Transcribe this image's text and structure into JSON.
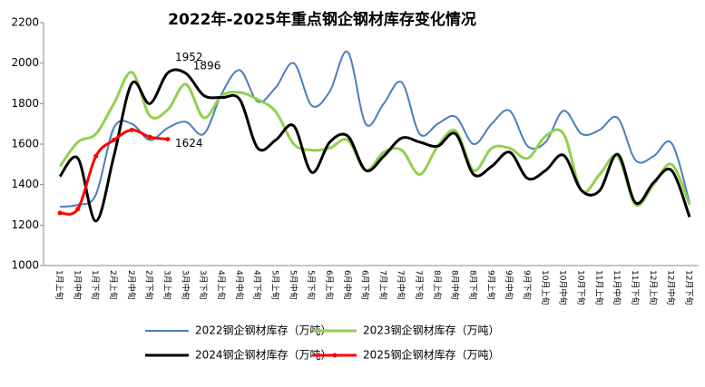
{
  "chart_data": {
    "type": "line",
    "title": "2022年-2025年重点钢企钢材库存变化情况",
    "categories": [
      "1月上旬",
      "1月中旬",
      "1月下旬",
      "2月上旬",
      "2月中旬",
      "2月下旬",
      "3月上旬",
      "3月中旬",
      "3月下旬",
      "4月上旬",
      "4月中旬",
      "4月下旬",
      "5月上旬",
      "5月中旬",
      "5月下旬",
      "6月上旬",
      "6月中旬",
      "6月下旬",
      "7月上旬",
      "7月中旬",
      "7月下旬",
      "8月上旬",
      "8月中旬",
      "8月下旬",
      "9月上旬",
      "9月中旬",
      "9月下旬",
      "10月上旬",
      "10月中旬",
      "10月下旬",
      "11月上旬",
      "11月中旬",
      "11月下旬",
      "12月上旬",
      "12月中旬",
      "12月下旬"
    ],
    "ylim": [
      1000,
      2200
    ],
    "yticks": [
      1000,
      1200,
      1400,
      1600,
      1800,
      2000,
      2200
    ],
    "series": [
      {
        "name": "2022钢企钢材库存（万吨）",
        "color": "#4a7ebb",
        "width": 2,
        "values": [
          1290,
          1300,
          1350,
          1680,
          1700,
          1620,
          1680,
          1710,
          1650,
          1850,
          1965,
          1810,
          1880,
          2000,
          1790,
          1860,
          2055,
          1700,
          1800,
          1905,
          1650,
          1700,
          1735,
          1600,
          1700,
          1765,
          1590,
          1610,
          1765,
          1650,
          1670,
          1730,
          1520,
          1540,
          1605,
          1310
        ]
      },
      {
        "name": "2023钢企钢材库存（万吨）",
        "color": "#92d050",
        "width": 3,
        "values": [
          1490,
          1610,
          1650,
          1800,
          1955,
          1740,
          1770,
          1896,
          1730,
          1840,
          1855,
          1820,
          1760,
          1600,
          1570,
          1580,
          1620,
          1470,
          1560,
          1570,
          1450,
          1590,
          1665,
          1470,
          1580,
          1580,
          1530,
          1640,
          1650,
          1370,
          1450,
          1540,
          1300,
          1400,
          1500,
          1300
        ],
        "value_labels": [
          null,
          null,
          null,
          null,
          null,
          null,
          null,
          "1896",
          null,
          null,
          null,
          null,
          null,
          null,
          null,
          null,
          null,
          null,
          null,
          null,
          null,
          null,
          null,
          null,
          null,
          null,
          null,
          null,
          null,
          null,
          null,
          null,
          null,
          null,
          null,
          null
        ]
      },
      {
        "name": "2024钢企钢材库存（万吨）",
        "color": "#000000",
        "width": 3,
        "values": [
          1440,
          1530,
          1220,
          1540,
          1900,
          1800,
          1952,
          1950,
          1840,
          1830,
          1820,
          1580,
          1620,
          1690,
          1460,
          1610,
          1640,
          1470,
          1540,
          1630,
          1610,
          1590,
          1650,
          1450,
          1490,
          1560,
          1430,
          1470,
          1545,
          1370,
          1370,
          1550,
          1310,
          1410,
          1470,
          1240
        ],
        "value_labels": [
          null,
          null,
          null,
          null,
          null,
          null,
          "1952",
          null,
          null,
          null,
          null,
          null,
          null,
          null,
          null,
          null,
          null,
          null,
          null,
          null,
          null,
          null,
          null,
          null,
          null,
          null,
          null,
          null,
          null,
          null,
          null,
          null,
          null,
          null,
          null,
          null
        ]
      },
      {
        "name": "2025钢企钢材库存（万吨）",
        "color": "#ff0000",
        "width": 3,
        "markers": true,
        "values": [
          1260,
          1280,
          1540,
          1620,
          1670,
          1635,
          1624,
          null,
          null,
          null,
          null,
          null,
          null,
          null,
          null,
          null,
          null,
          null,
          null,
          null,
          null,
          null,
          null,
          null,
          null,
          null,
          null,
          null,
          null,
          null,
          null,
          null,
          null,
          null,
          null,
          null
        ],
        "value_labels": [
          null,
          null,
          null,
          null,
          null,
          null,
          "1624",
          null,
          null,
          null,
          null,
          null,
          null,
          null,
          null,
          null,
          null,
          null,
          null,
          null,
          null,
          null,
          null,
          null,
          null,
          null,
          null,
          null,
          null,
          null,
          null,
          null,
          null,
          null,
          null,
          null
        ]
      }
    ]
  }
}
